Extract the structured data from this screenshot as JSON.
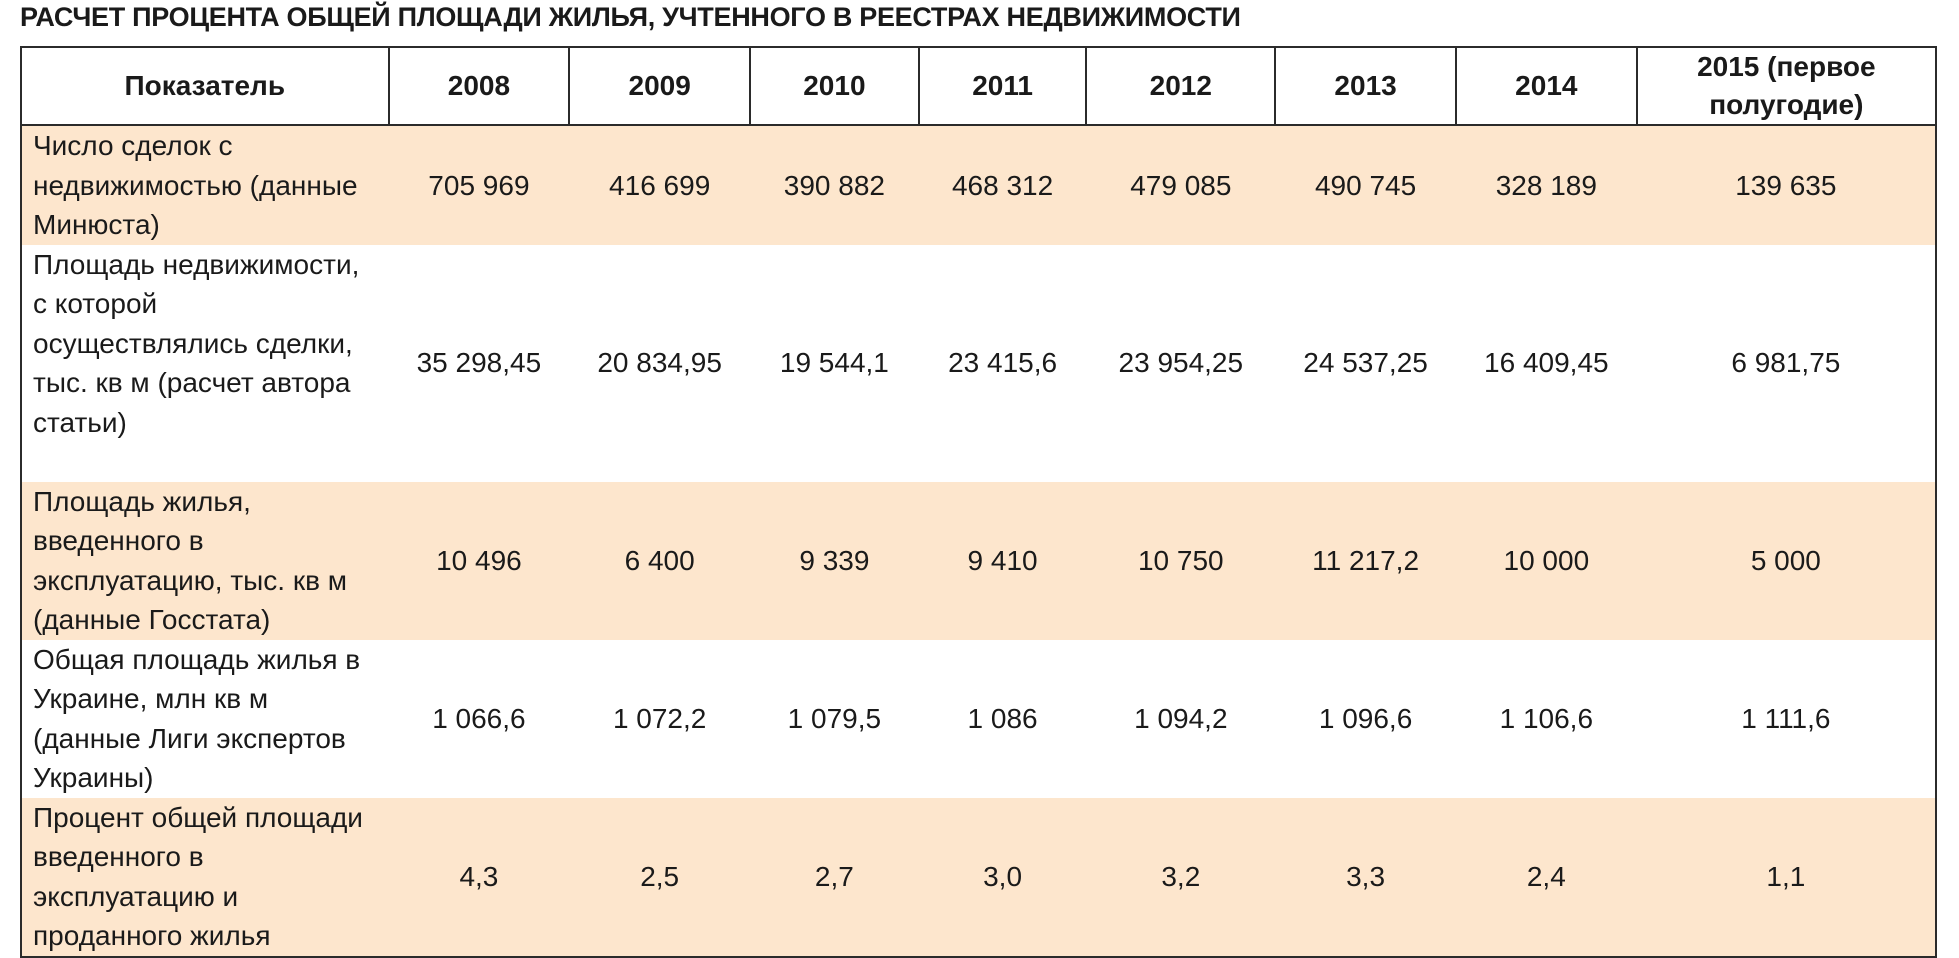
{
  "title": "РАСЧЕТ ПРОЦЕНТА ОБЩЕЙ ПЛОЩАДИ ЖИЛЬЯ, УЧТЕННОГО В РЕЕСТРАХ НЕДВИЖИМОСТИ",
  "table": {
    "headers": [
      "Показатель",
      "2008",
      "2009",
      "2010",
      "2011",
      "2012",
      "2013",
      "2014",
      "2015 (первое полугодие)"
    ],
    "rows": [
      {
        "label": "Число сделок с недвижимостью (данные Минюста)",
        "values": [
          "705 969",
          "416 699",
          "390 882",
          "468 312",
          "479 085",
          "490 745",
          "328 189",
          "139 635"
        ]
      },
      {
        "label": "Площадь недвижимости, с которой осуществлялись сделки, тыс. кв м (расчет автора статьи)",
        "values": [
          "35 298,45",
          "20 834,95",
          "19 544,1",
          "23 415,6",
          "23 954,25",
          "24 537,25",
          "16 409,45",
          "6 981,75"
        ]
      },
      {
        "label": "Площадь жилья, введенного в эксплуатацию, тыс. кв м (данные Госстата)",
        "values": [
          "10 496",
          "6 400",
          "9 339",
          "9 410",
          "10 750",
          "11 217,2",
          "10 000",
          "5 000"
        ]
      },
      {
        "label": "Общая площадь жилья в Украине, млн кв м (данные Лиги экспертов Украины)",
        "values": [
          "1 066,6",
          "1 072,2",
          "1 079,5",
          "1 086",
          "1 094,2",
          "1 096,6",
          "1 106,6",
          "1 111,6"
        ]
      },
      {
        "label": "Процент общей площади введенного в эксплуатацию и проданного жилья",
        "values": [
          "4,3",
          "2,5",
          "2,7",
          "3,0",
          "3,2",
          "3,3",
          "2,4",
          "1,1"
        ]
      }
    ]
  },
  "colors": {
    "shaded_row": "#fde6cd",
    "plain_row": "#ffffff",
    "border": "#2b2b2b",
    "text": "#1a1a1a"
  }
}
